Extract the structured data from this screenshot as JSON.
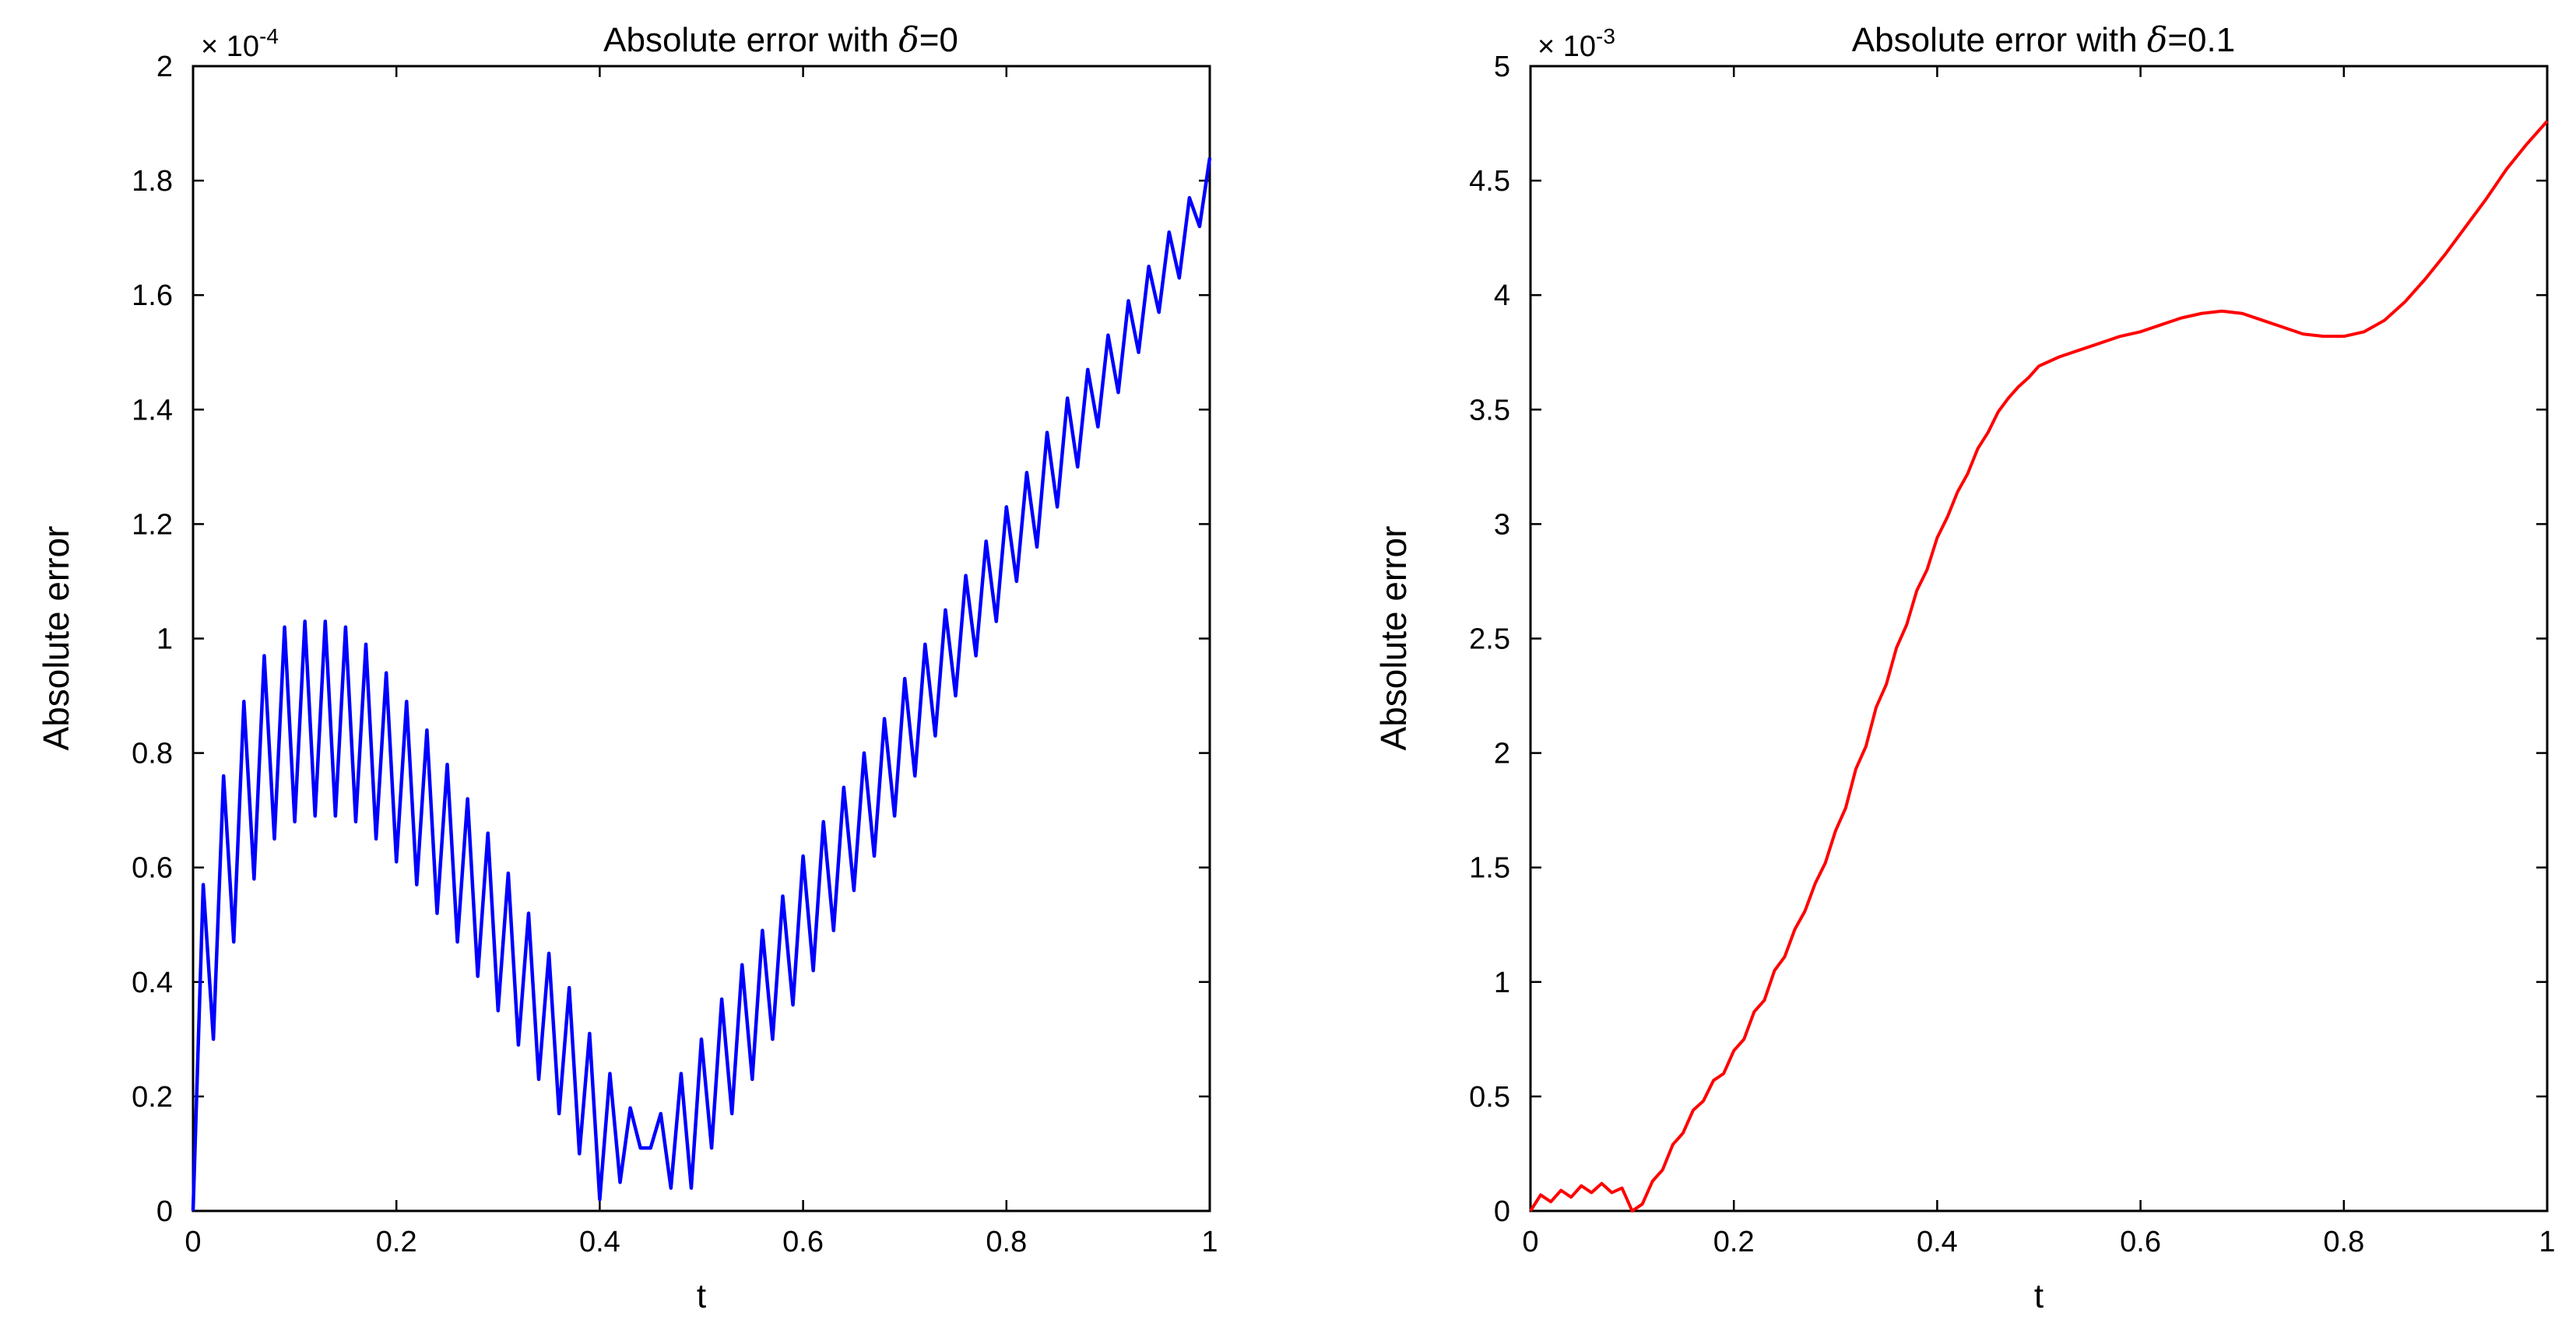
{
  "chart_data": [
    {
      "type": "line",
      "title_prefix": "Absolute error with ",
      "title_symbol": "δ",
      "title_suffix": "=0",
      "xlabel": "t",
      "ylabel": "Absolute error",
      "xlim": [
        0,
        1
      ],
      "ylim": [
        0,
        2
      ],
      "y_multiplier_base": "× 10",
      "y_multiplier_exponent": "-4",
      "xticks": [
        0,
        0.2,
        0.4,
        0.6,
        0.8,
        1
      ],
      "xtick_labels": [
        "0",
        "0.2",
        "0.4",
        "0.6",
        "0.8",
        "1"
      ],
      "yticks": [
        0,
        0.2,
        0.4,
        0.6,
        0.8,
        1,
        1.2,
        1.4,
        1.6,
        1.8,
        2
      ],
      "ytick_labels": [
        "0",
        "0.2",
        "0.4",
        "0.6",
        "0.8",
        "1",
        "1.2",
        "1.4",
        "1.6",
        "1.8",
        "2"
      ],
      "grid": false,
      "color": "#0000ff",
      "series": [
        {
          "x": [
            0,
            0.01,
            0.02,
            0.03,
            0.04,
            0.05,
            0.06,
            0.07,
            0.08,
            0.09,
            0.1,
            0.11,
            0.12,
            0.13,
            0.14,
            0.15,
            0.16,
            0.17,
            0.18,
            0.19,
            0.2,
            0.21,
            0.22,
            0.23,
            0.24,
            0.25,
            0.26,
            0.27,
            0.28,
            0.29,
            0.3,
            0.31,
            0.32,
            0.33,
            0.34,
            0.35,
            0.36,
            0.37,
            0.38,
            0.39,
            0.4,
            0.41,
            0.42,
            0.43,
            0.44,
            0.45,
            0.46,
            0.47,
            0.48,
            0.49,
            0.5,
            0.51,
            0.52,
            0.53,
            0.54,
            0.55,
            0.56,
            0.57,
            0.58,
            0.59,
            0.6,
            0.61,
            0.62,
            0.63,
            0.64,
            0.65,
            0.66,
            0.67,
            0.68,
            0.69,
            0.7,
            0.71,
            0.72,
            0.73,
            0.74,
            0.75,
            0.76,
            0.77,
            0.78,
            0.79,
            0.8,
            0.81,
            0.82,
            0.83,
            0.84,
            0.85,
            0.86,
            0.87,
            0.88,
            0.89,
            0.9,
            0.91,
            0.92,
            0.93,
            0.94,
            0.95,
            0.96,
            0.97,
            0.98,
            0.99,
            1.0
          ],
          "y": [
            0,
            0.57,
            0.3,
            0.76,
            0.47,
            0.89,
            0.58,
            0.97,
            0.65,
            1.02,
            0.68,
            1.03,
            0.69,
            1.03,
            0.69,
            1.02,
            0.68,
            0.99,
            0.65,
            0.94,
            0.61,
            0.89,
            0.57,
            0.84,
            0.52,
            0.78,
            0.47,
            0.72,
            0.41,
            0.66,
            0.35,
            0.59,
            0.29,
            0.52,
            0.23,
            0.45,
            0.17,
            0.39,
            0.1,
            0.31,
            0.02,
            0.24,
            0.05,
            0.18,
            0.11,
            0.11,
            0.17,
            0.04,
            0.24,
            0.04,
            0.3,
            0.11,
            0.37,
            0.17,
            0.43,
            0.23,
            0.49,
            0.3,
            0.55,
            0.36,
            0.62,
            0.42,
            0.68,
            0.49,
            0.74,
            0.56,
            0.8,
            0.62,
            0.86,
            0.69,
            0.93,
            0.76,
            0.99,
            0.83,
            1.05,
            0.9,
            1.11,
            0.97,
            1.17,
            1.03,
            1.23,
            1.1,
            1.29,
            1.16,
            1.36,
            1.23,
            1.42,
            1.3,
            1.47,
            1.37,
            1.53,
            1.43,
            1.59,
            1.5,
            1.65,
            1.57,
            1.71,
            1.63,
            1.77,
            1.72,
            1.84
          ]
        }
      ]
    },
    {
      "type": "line",
      "title_prefix": "Absolute error with ",
      "title_symbol": "δ",
      "title_suffix": "=0.1",
      "xlabel": "t",
      "ylabel": "Absolute error",
      "xlim": [
        0,
        1
      ],
      "ylim": [
        0,
        5
      ],
      "y_multiplier_base": "× 10",
      "y_multiplier_exponent": "-3",
      "xticks": [
        0,
        0.2,
        0.4,
        0.6,
        0.8,
        1
      ],
      "xtick_labels": [
        "0",
        "0.2",
        "0.4",
        "0.6",
        "0.8",
        "1"
      ],
      "yticks": [
        0,
        0.5,
        1,
        1.5,
        2,
        2.5,
        3,
        3.5,
        4,
        4.5,
        5
      ],
      "ytick_labels": [
        "0",
        "0.5",
        "1",
        "1.5",
        "2",
        "2.5",
        "3",
        "3.5",
        "4",
        "4.5",
        "5"
      ],
      "grid": false,
      "color": "#ff0000",
      "series": [
        {
          "x": [
            0,
            0.01,
            0.02,
            0.03,
            0.04,
            0.05,
            0.06,
            0.07,
            0.08,
            0.09,
            0.1,
            0.11,
            0.12,
            0.13,
            0.14,
            0.15,
            0.16,
            0.17,
            0.18,
            0.19,
            0.2,
            0.21,
            0.22,
            0.23,
            0.24,
            0.25,
            0.26,
            0.27,
            0.28,
            0.29,
            0.3,
            0.31,
            0.32,
            0.33,
            0.34,
            0.35,
            0.36,
            0.37,
            0.38,
            0.39,
            0.4,
            0.41,
            0.42,
            0.43,
            0.44,
            0.45,
            0.46,
            0.47,
            0.48,
            0.49,
            0.5,
            0.52,
            0.54,
            0.56,
            0.58,
            0.6,
            0.62,
            0.64,
            0.66,
            0.68,
            0.7,
            0.72,
            0.74,
            0.76,
            0.78,
            0.8,
            0.82,
            0.84,
            0.86,
            0.88,
            0.9,
            0.92,
            0.94,
            0.96,
            0.98,
            1.0
          ],
          "y": [
            0,
            0.07,
            0.04,
            0.09,
            0.06,
            0.11,
            0.08,
            0.12,
            0.08,
            0.1,
            0.0,
            0.03,
            0.13,
            0.18,
            0.29,
            0.34,
            0.44,
            0.48,
            0.57,
            0.6,
            0.7,
            0.75,
            0.87,
            0.92,
            1.05,
            1.11,
            1.23,
            1.31,
            1.43,
            1.52,
            1.66,
            1.76,
            1.93,
            2.03,
            2.2,
            2.3,
            2.46,
            2.56,
            2.71,
            2.8,
            2.94,
            3.03,
            3.14,
            3.22,
            3.33,
            3.4,
            3.49,
            3.55,
            3.6,
            3.64,
            3.69,
            3.73,
            3.76,
            3.79,
            3.82,
            3.84,
            3.87,
            3.9,
            3.92,
            3.93,
            3.92,
            3.89,
            3.86,
            3.83,
            3.82,
            3.82,
            3.84,
            3.89,
            3.97,
            4.07,
            4.18,
            4.3,
            4.42,
            4.55,
            4.66,
            4.76
          ]
        }
      ]
    }
  ]
}
